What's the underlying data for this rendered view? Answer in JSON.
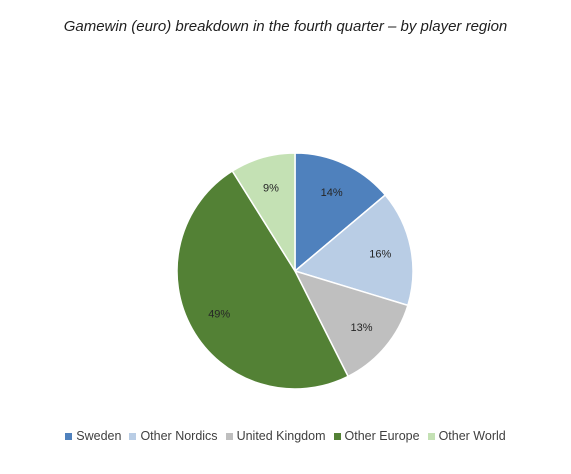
{
  "chart_data": {
    "type": "pie",
    "title": "Gamewin (euro) breakdown in the fourth quarter – by player region",
    "categories": [
      "Sweden",
      "Other Nordics",
      "United Kingdom",
      "Other Europe",
      "Other World"
    ],
    "values": [
      14,
      16,
      13,
      49,
      9
    ],
    "labels": [
      "14%",
      "16%",
      "13%",
      "49%",
      "9%"
    ],
    "colors": [
      "#4f81bd",
      "#b9cde5",
      "#bfbfbf",
      "#538135",
      "#c4e1b4"
    ],
    "legend_position": "bottom"
  }
}
